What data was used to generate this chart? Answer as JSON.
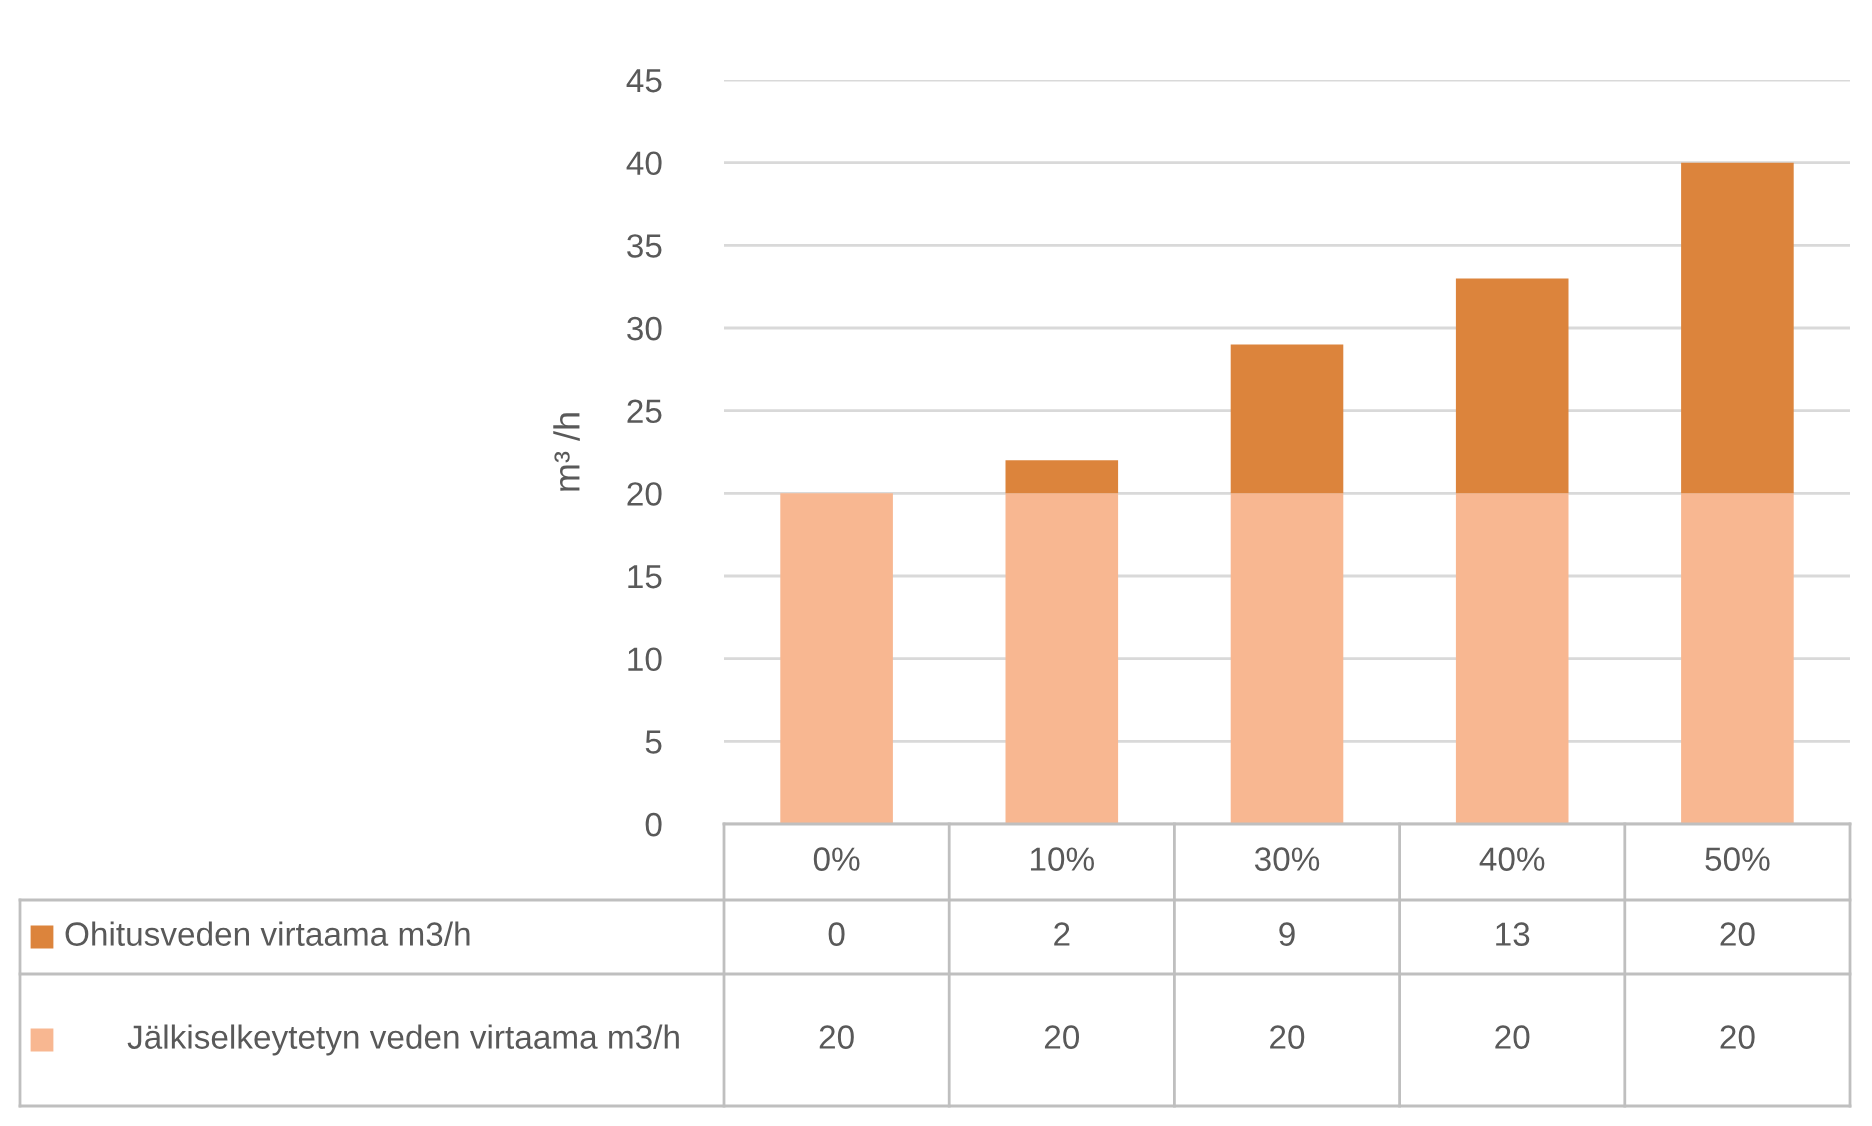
{
  "chart_data": {
    "type": "bar",
    "stacked": true,
    "ylabel": "m³ /h",
    "categories": [
      "0%",
      "10%",
      "30%",
      "40%",
      "50%"
    ],
    "series": [
      {
        "name": "Jälkiselkeytetyn veden virtaama m3/h",
        "color": "#f8b791",
        "values": [
          20,
          20,
          20,
          20,
          20
        ]
      },
      {
        "name": "Ohitusveden virtaama m3/h",
        "color": "#dc843c",
        "values": [
          0,
          2,
          9,
          13,
          20
        ]
      }
    ],
    "ylim": [
      0,
      45
    ],
    "yticks": [
      0,
      5,
      10,
      15,
      20,
      25,
      30,
      35,
      40,
      45
    ],
    "grid": "y",
    "legend": "bottom",
    "data_labels": true
  }
}
